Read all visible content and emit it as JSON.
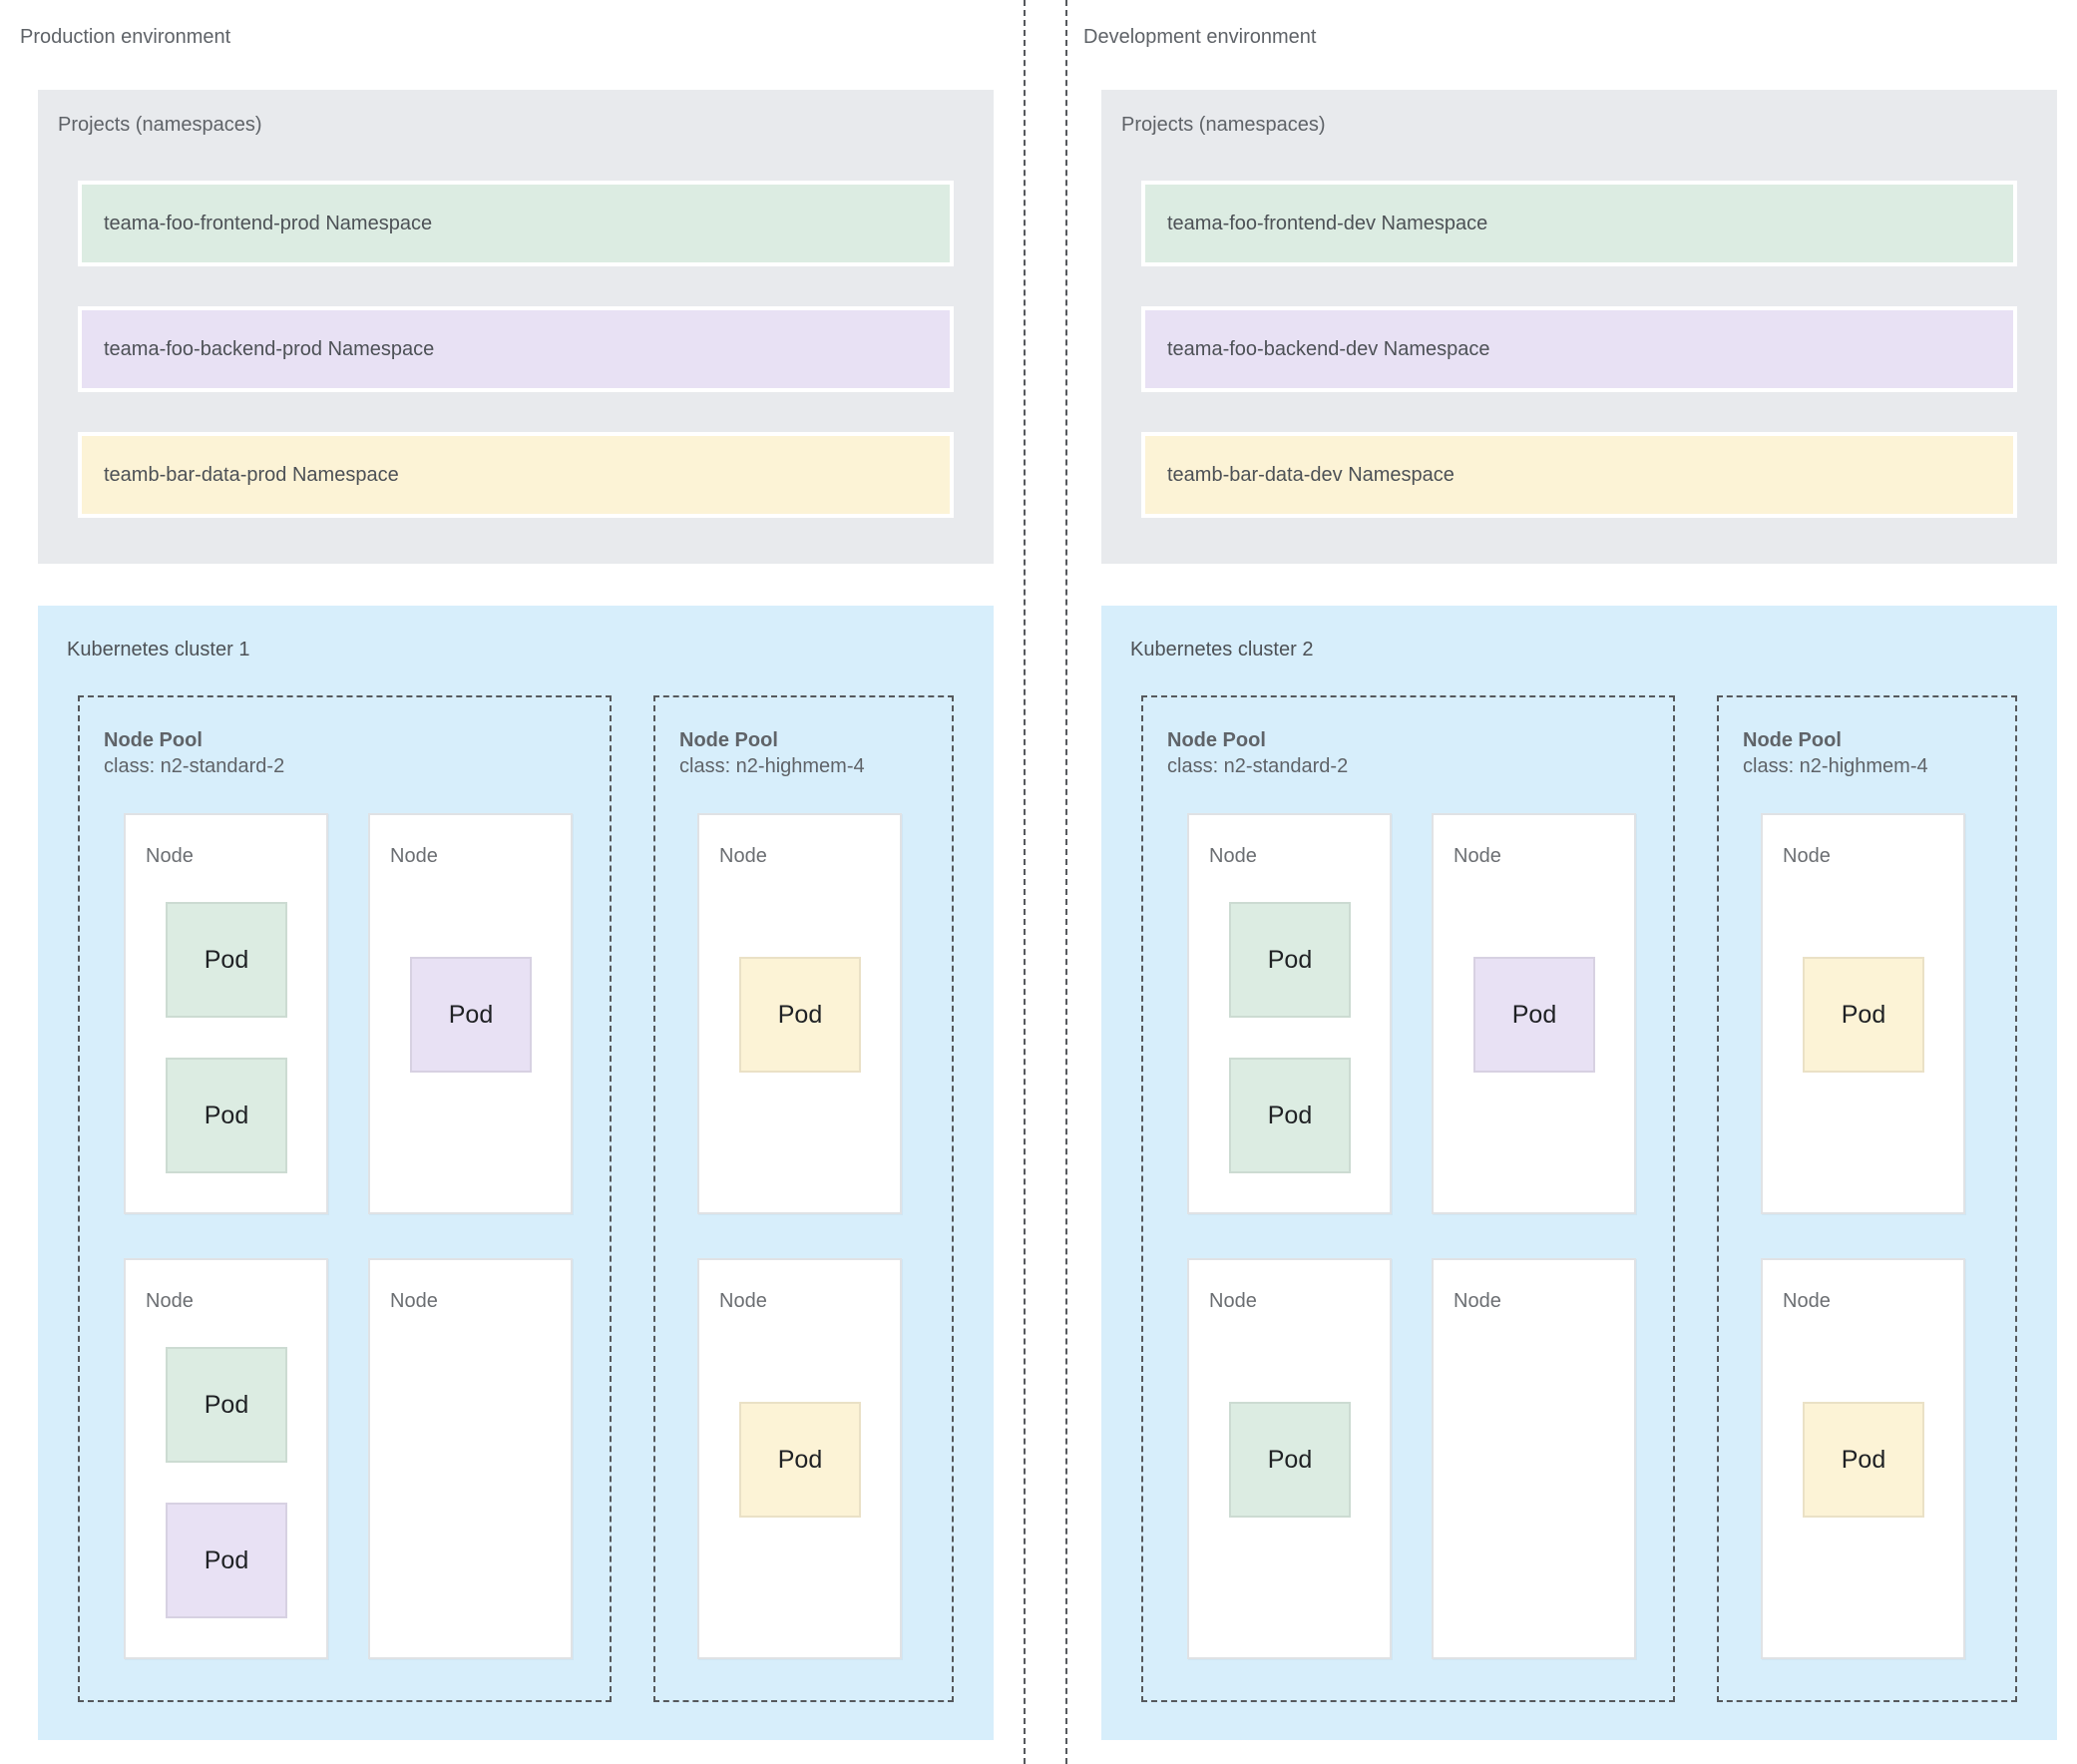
{
  "page": {
    "background": "#ffffff"
  },
  "labels": {
    "pod": "Pod",
    "node": "Node"
  },
  "colors": {
    "panel_gray": "#e8eaed",
    "cluster_blue": "#d7eefb",
    "namespace_green": "#dcece2",
    "namespace_purple": "#e8e1f4",
    "namespace_yellow": "#fcf3d6",
    "dashed_border": "#56595d",
    "text_primary": "#4d5156",
    "text_secondary": "#5f6368"
  },
  "environments": [
    {
      "title": "Production environment",
      "projects_title": "Projects (namespaces)",
      "namespaces": [
        {
          "label": "teama-foo-frontend-prod Namespace",
          "color_key": "green"
        },
        {
          "label": "teama-foo-backend-prod Namespace",
          "color_key": "purple"
        },
        {
          "label": "teamb-bar-data-prod Namespace",
          "color_key": "yellow"
        }
      ],
      "cluster": {
        "title": "Kubernetes cluster 1",
        "node_pools": [
          {
            "name": "Node Pool",
            "machine_class": "class: n2-standard-2"
          },
          {
            "name": "Node Pool",
            "machine_class": "class: n2-highmem-4"
          }
        ]
      }
    },
    {
      "title": "Development environment",
      "projects_title": "Projects (namespaces)",
      "namespaces": [
        {
          "label": "teama-foo-frontend-dev Namespace",
          "color_key": "green"
        },
        {
          "label": "teama-foo-backend-dev Namespace",
          "color_key": "purple"
        },
        {
          "label": "teamb-bar-data-dev Namespace",
          "color_key": "yellow"
        }
      ],
      "cluster": {
        "title": "Kubernetes cluster 2",
        "node_pools": [
          {
            "name": "Node Pool",
            "machine_class": "class: n2-standard-2"
          },
          {
            "name": "Node Pool",
            "machine_class": "class: n2-highmem-4"
          }
        ]
      }
    }
  ]
}
